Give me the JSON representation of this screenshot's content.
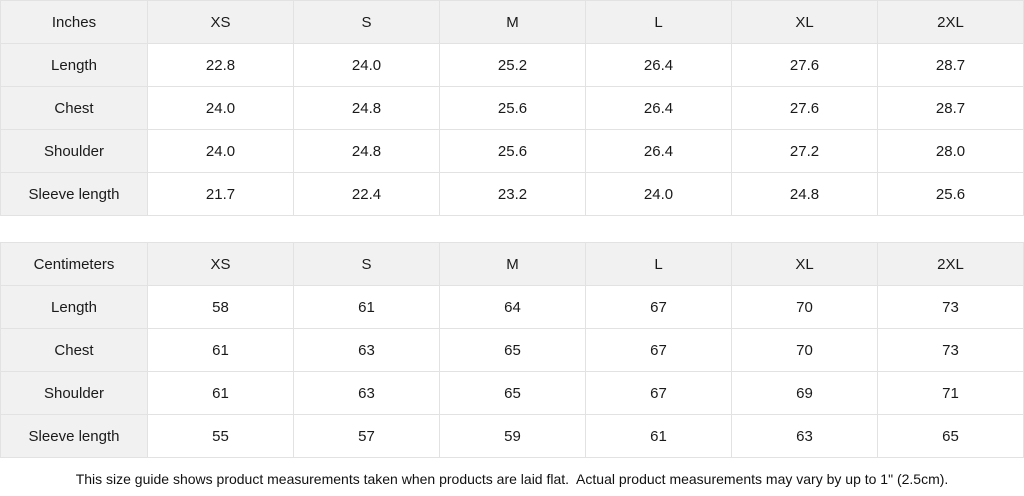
{
  "colors": {
    "header_bg": "#f1f1f1",
    "cell_bg": "#ffffff",
    "border": "#e2e2e2",
    "text": "#1a1a1a"
  },
  "chart_data": [
    {
      "type": "table",
      "unit_label": "Inches",
      "sizes": [
        "XS",
        "S",
        "M",
        "L",
        "XL",
        "2XL"
      ],
      "rows": [
        {
          "label": "Length",
          "values": [
            "22.8",
            "24.0",
            "25.2",
            "26.4",
            "27.6",
            "28.7"
          ]
        },
        {
          "label": "Chest",
          "values": [
            "24.0",
            "24.8",
            "25.6",
            "26.4",
            "27.6",
            "28.7"
          ]
        },
        {
          "label": "Shoulder",
          "values": [
            "24.0",
            "24.8",
            "25.6",
            "26.4",
            "27.2",
            "28.0"
          ]
        },
        {
          "label": "Sleeve length",
          "values": [
            "21.7",
            "22.4",
            "23.2",
            "24.0",
            "24.8",
            "25.6"
          ]
        }
      ]
    },
    {
      "type": "table",
      "unit_label": "Centimeters",
      "sizes": [
        "XS",
        "S",
        "M",
        "L",
        "XL",
        "2XL"
      ],
      "rows": [
        {
          "label": "Length",
          "values": [
            "58",
            "61",
            "64",
            "67",
            "70",
            "73"
          ]
        },
        {
          "label": "Chest",
          "values": [
            "61",
            "63",
            "65",
            "67",
            "70",
            "73"
          ]
        },
        {
          "label": "Shoulder",
          "values": [
            "61",
            "63",
            "65",
            "67",
            "69",
            "71"
          ]
        },
        {
          "label": "Sleeve length",
          "values": [
            "55",
            "57",
            "59",
            "61",
            "63",
            "65"
          ]
        }
      ]
    }
  ],
  "footer": {
    "note": "This size guide shows product measurements taken when products are laid flat.  Actual product measurements may vary by up to 1\" (2.5cm)."
  }
}
